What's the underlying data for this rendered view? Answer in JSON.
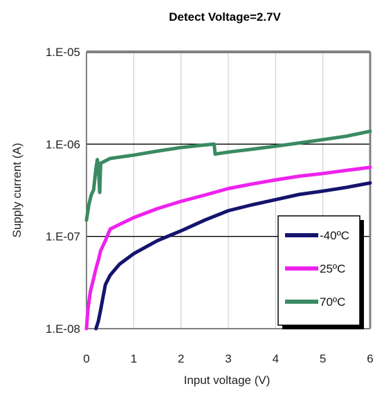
{
  "chart_data": {
    "type": "line",
    "title": "Detect Voltage=2.7V",
    "xlabel": "Input voltage (V)",
    "ylabel": "Supply current (A)",
    "xlim": [
      0,
      6
    ],
    "ylim": [
      1e-08,
      1e-05
    ],
    "yscale": "log",
    "x_tick_labels": [
      "0",
      "1",
      "2",
      "3",
      "4",
      "5",
      "6"
    ],
    "y_tick_labels": [
      "1.E-08",
      "1.E-07",
      "1.E-06",
      "1.E-05"
    ],
    "grid": true,
    "legend_position": "bottom-right",
    "series": [
      {
        "name": "-40ºC",
        "color": "#14146e",
        "points": [
          [
            0.2,
            1e-08
          ],
          [
            0.25,
            1.2e-08
          ],
          [
            0.3,
            1.6e-08
          ],
          [
            0.35,
            2.2e-08
          ],
          [
            0.4,
            3e-08
          ],
          [
            0.5,
            3.8e-08
          ],
          [
            0.7,
            5e-08
          ],
          [
            1.0,
            6.5e-08
          ],
          [
            1.5,
            9e-08
          ],
          [
            2.0,
            1.15e-07
          ],
          [
            2.5,
            1.5e-07
          ],
          [
            3.0,
            1.9e-07
          ],
          [
            3.5,
            2.2e-07
          ],
          [
            4.0,
            2.5e-07
          ],
          [
            4.5,
            2.85e-07
          ],
          [
            5.0,
            3.1e-07
          ],
          [
            5.5,
            3.4e-07
          ],
          [
            6.0,
            3.8e-07
          ]
        ]
      },
      {
        "name": "25ºC",
        "color": "#ee22ee",
        "points": [
          [
            0.0,
            1e-08
          ],
          [
            0.03,
            1.6e-08
          ],
          [
            0.08,
            2.5e-08
          ],
          [
            0.15,
            3.5e-08
          ],
          [
            0.2,
            4.5e-08
          ],
          [
            0.25,
            5.5e-08
          ],
          [
            0.3,
            7e-08
          ],
          [
            0.4,
            9e-08
          ],
          [
            0.5,
            1.2e-07
          ],
          [
            0.7,
            1.35e-07
          ],
          [
            1.0,
            1.6e-07
          ],
          [
            1.5,
            2e-07
          ],
          [
            2.0,
            2.4e-07
          ],
          [
            2.5,
            2.8e-07
          ],
          [
            3.0,
            3.3e-07
          ],
          [
            3.5,
            3.7e-07
          ],
          [
            4.0,
            4.1e-07
          ],
          [
            4.5,
            4.5e-07
          ],
          [
            5.0,
            4.8e-07
          ],
          [
            5.5,
            5.2e-07
          ],
          [
            6.0,
            5.6e-07
          ]
        ]
      },
      {
        "name": "70ºC",
        "color": "#3a8a62",
        "points": [
          [
            0.0,
            1.5e-07
          ],
          [
            0.05,
            2.2e-07
          ],
          [
            0.1,
            2.8e-07
          ],
          [
            0.15,
            3.2e-07
          ],
          [
            0.2,
            5.5e-07
          ],
          [
            0.23,
            6.8e-07
          ],
          [
            0.25,
            5.8e-07
          ],
          [
            0.28,
            3e-07
          ],
          [
            0.3,
            6.2e-07
          ],
          [
            0.5,
            7e-07
          ],
          [
            1.0,
            7.6e-07
          ],
          [
            1.5,
            8.4e-07
          ],
          [
            2.0,
            9.2e-07
          ],
          [
            2.5,
            9.8e-07
          ],
          [
            2.7,
            1e-06
          ],
          [
            2.72,
            7.8e-07
          ],
          [
            3.0,
            8.2e-07
          ],
          [
            3.5,
            8.8e-07
          ],
          [
            4.0,
            9.5e-07
          ],
          [
            4.5,
            1.03e-06
          ],
          [
            5.0,
            1.12e-06
          ],
          [
            5.5,
            1.22e-06
          ],
          [
            6.0,
            1.38e-06
          ]
        ]
      }
    ]
  }
}
